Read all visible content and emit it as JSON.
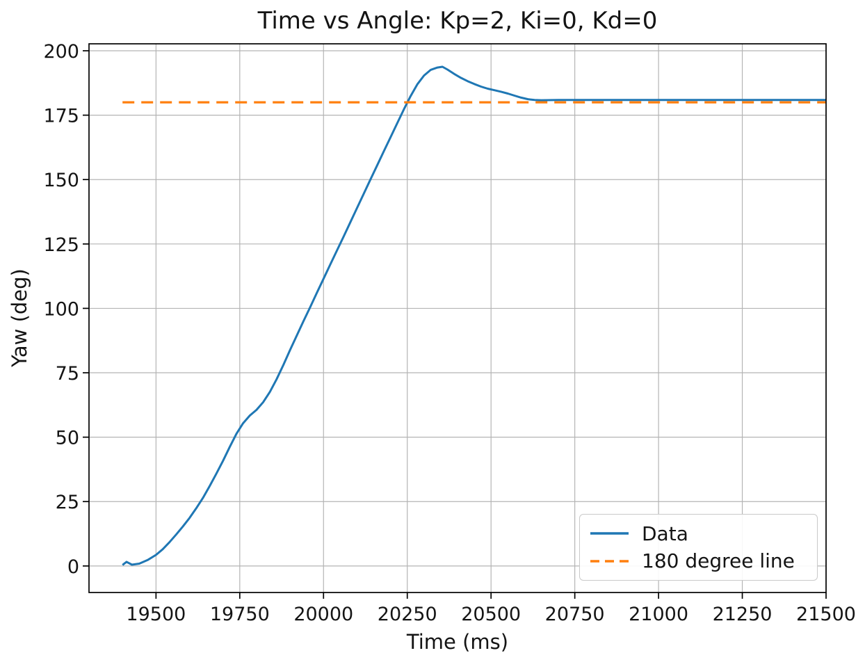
{
  "chart_data": {
    "type": "line",
    "title": "Time vs Angle: Kp=2, Ki=0, Kd=0",
    "xlabel": "Time (ms)",
    "ylabel": "Yaw (deg)",
    "xlim": [
      19300,
      21500
    ],
    "ylim": [
      -10.3,
      202.7
    ],
    "xticks": [
      19500,
      19750,
      20000,
      20250,
      20500,
      20750,
      21000,
      21250,
      21500
    ],
    "yticks": [
      0,
      25,
      50,
      75,
      100,
      125,
      150,
      175,
      200
    ],
    "grid": true,
    "grid_color": "#b4b4b4",
    "spine_color": "#000000",
    "legend_position": "lower right",
    "series": [
      {
        "name": "Data",
        "color": "#1f77b4",
        "style": "solid",
        "line_width": 3,
        "points": [
          [
            19400,
            0.4
          ],
          [
            19412,
            1.6
          ],
          [
            19428,
            0.5
          ],
          [
            19450,
            0.9
          ],
          [
            19475,
            2.3
          ],
          [
            19500,
            4.3
          ],
          [
            19520,
            6.5
          ],
          [
            19540,
            9.2
          ],
          [
            19560,
            12.2
          ],
          [
            19580,
            15.3
          ],
          [
            19600,
            18.6
          ],
          [
            19620,
            22.4
          ],
          [
            19640,
            26.4
          ],
          [
            19660,
            31.0
          ],
          [
            19680,
            35.8
          ],
          [
            19700,
            40.8
          ],
          [
            19720,
            46.2
          ],
          [
            19740,
            51.3
          ],
          [
            19760,
            55.4
          ],
          [
            19780,
            58.4
          ],
          [
            19800,
            60.6
          ],
          [
            19820,
            63.6
          ],
          [
            19840,
            67.6
          ],
          [
            19860,
            72.5
          ],
          [
            19880,
            78.0
          ],
          [
            19900,
            83.8
          ],
          [
            19920,
            89.4
          ],
          [
            19940,
            95.0
          ],
          [
            19960,
            100.4
          ],
          [
            19980,
            106.0
          ],
          [
            20000,
            111.5
          ],
          [
            20020,
            117.0
          ],
          [
            20040,
            122.4
          ],
          [
            20060,
            127.9
          ],
          [
            20080,
            133.4
          ],
          [
            20100,
            139.0
          ],
          [
            20120,
            144.5
          ],
          [
            20140,
            150.0
          ],
          [
            20160,
            155.5
          ],
          [
            20180,
            161.0
          ],
          [
            20200,
            166.4
          ],
          [
            20220,
            171.9
          ],
          [
            20240,
            177.3
          ],
          [
            20260,
            182.4
          ],
          [
            20280,
            187.0
          ],
          [
            20300,
            190.4
          ],
          [
            20320,
            192.6
          ],
          [
            20340,
            193.5
          ],
          [
            20355,
            193.8
          ],
          [
            20370,
            192.7
          ],
          [
            20390,
            191.0
          ],
          [
            20410,
            189.5
          ],
          [
            20430,
            188.2
          ],
          [
            20450,
            187.1
          ],
          [
            20470,
            186.1
          ],
          [
            20490,
            185.3
          ],
          [
            20510,
            184.7
          ],
          [
            20530,
            184.1
          ],
          [
            20550,
            183.4
          ],
          [
            20570,
            182.6
          ],
          [
            20590,
            181.8
          ],
          [
            20610,
            181.2
          ],
          [
            20630,
            180.9
          ],
          [
            20650,
            180.8
          ],
          [
            20700,
            180.9
          ],
          [
            20750,
            180.9
          ],
          [
            20800,
            180.9
          ],
          [
            20850,
            180.9
          ],
          [
            20900,
            180.9
          ],
          [
            20950,
            180.9
          ],
          [
            21000,
            180.9
          ],
          [
            21050,
            180.9
          ],
          [
            21100,
            180.9
          ],
          [
            21150,
            180.9
          ],
          [
            21200,
            180.9
          ],
          [
            21250,
            180.9
          ],
          [
            21300,
            180.9
          ],
          [
            21350,
            180.9
          ],
          [
            21400,
            180.9
          ],
          [
            21450,
            180.9
          ],
          [
            21500,
            180.9
          ]
        ]
      },
      {
        "name": "180 degree line",
        "color": "#ff7f0e",
        "style": "dashed",
        "line_width": 3.2,
        "reference_value": 180,
        "points": [
          [
            19400,
            180
          ],
          [
            21500,
            180
          ]
        ]
      }
    ]
  }
}
